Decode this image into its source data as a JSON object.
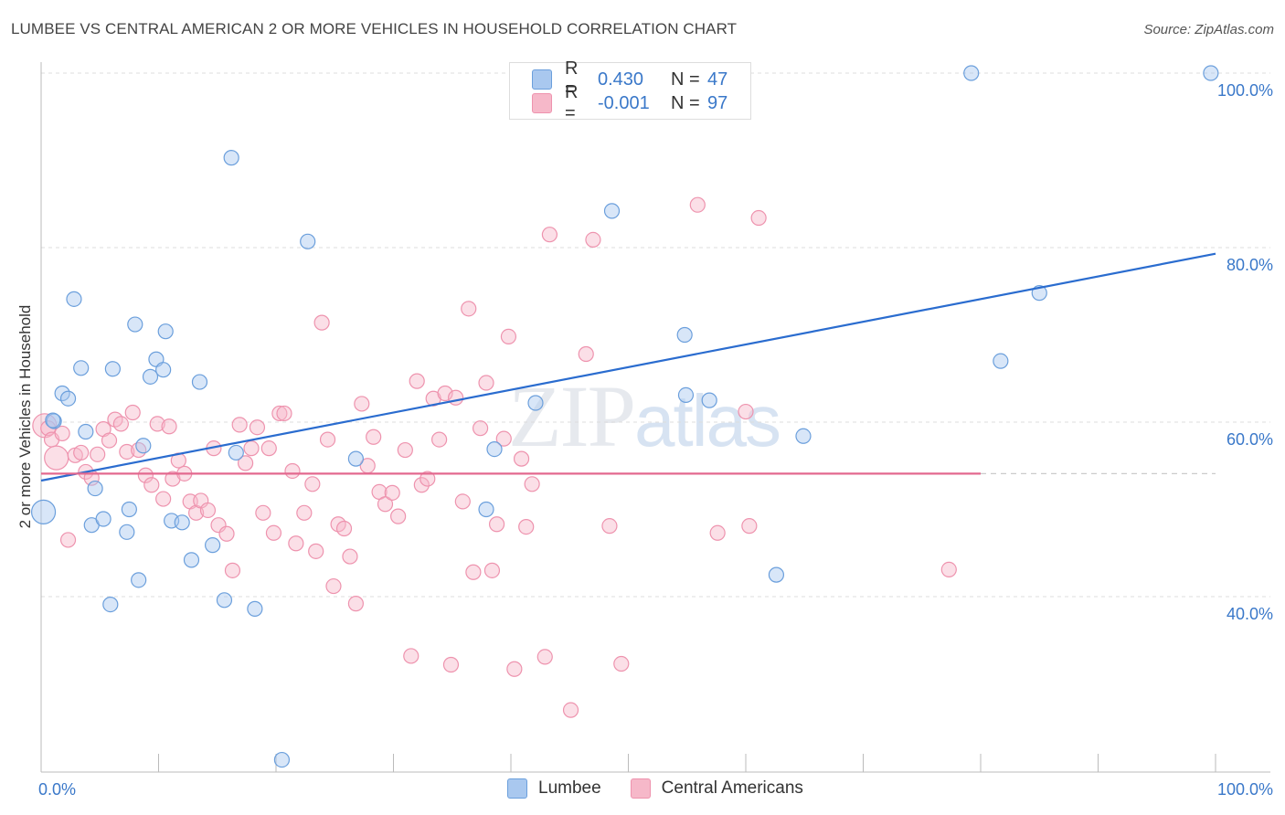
{
  "header": {
    "title": "LUMBEE VS CENTRAL AMERICAN 2 OR MORE VEHICLES IN HOUSEHOLD CORRELATION CHART",
    "source": "Source: ZipAtlas.com"
  },
  "watermark": {
    "zip": "ZIP",
    "atlas": "atlas"
  },
  "legend": {
    "rows": [
      {
        "r_label": "R =",
        "r_value": "0.430",
        "n_label": "N =",
        "n_value": "47",
        "color": "#a9c8ef"
      },
      {
        "r_label": "R =",
        "r_value": "-0.001",
        "n_label": "N =",
        "n_value": "97",
        "color": "#f6b8c9"
      }
    ]
  },
  "bottom_legend": [
    {
      "label": "Lumbee",
      "color": "#a9c8ef"
    },
    {
      "label": "Central Americans",
      "color": "#f6b8c9"
    }
  ],
  "chart_data": {
    "type": "scatter",
    "ylabel": "2 or more Vehicles in Household",
    "x_tick_labels": [
      "0.0%",
      "100.0%"
    ],
    "y_tick_labels": [
      "40.0%",
      "60.0%",
      "80.0%",
      "100.0%"
    ],
    "y_ticks": [
      40,
      60,
      80,
      100
    ],
    "xlim": [
      0,
      100
    ],
    "ylim": [
      20,
      102
    ],
    "grid": true,
    "series": [
      {
        "name": "Lumbee",
        "color": "#6b9fdc",
        "fill": "#a9c8ef",
        "trend": {
          "x": [
            0,
            100
          ],
          "y": [
            53.3,
            79.3
          ],
          "color": "#2a6ccf"
        },
        "points": [
          [
            0.2,
            49.7,
            2
          ],
          [
            1.1,
            60.1,
            1
          ],
          [
            1.8,
            63.3,
            1
          ],
          [
            2.3,
            62.7,
            1
          ],
          [
            2.8,
            74.1,
            1
          ],
          [
            3.4,
            66.2,
            1
          ],
          [
            3.8,
            58.9,
            1
          ],
          [
            4.3,
            48.2,
            1
          ],
          [
            4.6,
            52.4,
            1
          ],
          [
            5.3,
            48.9,
            1
          ],
          [
            5.9,
            39.1,
            1
          ],
          [
            6.1,
            66.1,
            1
          ],
          [
            7.3,
            47.4,
            1
          ],
          [
            7.5,
            50.0,
            1
          ],
          [
            8.0,
            71.2,
            1
          ],
          [
            8.3,
            41.9,
            1
          ],
          [
            8.7,
            57.3,
            1
          ],
          [
            9.3,
            65.2,
            1
          ],
          [
            9.8,
            67.2,
            1
          ],
          [
            10.4,
            66.0,
            1
          ],
          [
            10.6,
            70.4,
            1
          ],
          [
            11.1,
            48.7,
            1
          ],
          [
            12.0,
            48.5,
            1
          ],
          [
            12.8,
            44.2,
            1
          ],
          [
            13.5,
            64.6,
            1
          ],
          [
            14.6,
            45.9,
            1
          ],
          [
            15.6,
            39.6,
            1
          ],
          [
            16.2,
            90.3,
            1
          ],
          [
            16.6,
            56.5,
            1
          ],
          [
            18.2,
            38.6,
            1
          ],
          [
            20.5,
            21.3,
            1
          ],
          [
            22.7,
            80.7,
            1
          ],
          [
            26.8,
            55.8,
            1
          ],
          [
            37.9,
            50.0,
            1
          ],
          [
            38.6,
            56.9,
            1
          ],
          [
            42.1,
            62.2,
            1
          ],
          [
            48.6,
            84.2,
            1
          ],
          [
            54.8,
            70.0,
            1
          ],
          [
            54.9,
            63.1,
            1
          ],
          [
            56.9,
            62.5,
            1
          ],
          [
            62.6,
            42.5,
            1
          ],
          [
            64.9,
            58.4,
            1
          ],
          [
            79.2,
            100.0,
            1
          ],
          [
            81.7,
            67.0,
            1
          ],
          [
            85.0,
            74.8,
            1
          ],
          [
            99.6,
            100.0,
            1
          ],
          [
            1.0,
            60.2,
            1
          ]
        ]
      },
      {
        "name": "Central Americans",
        "color": "#ee93ae",
        "fill": "#f6b8c9",
        "trend": {
          "x": [
            0,
            80
          ],
          "y": [
            54.1,
            54.1
          ],
          "color": "#e3698f"
        },
        "points": [
          [
            0.3,
            59.6,
            2
          ],
          [
            0.6,
            59.3,
            1
          ],
          [
            0.9,
            58.0,
            1
          ],
          [
            1.3,
            55.9,
            2
          ],
          [
            1.8,
            58.7,
            1
          ],
          [
            2.3,
            46.5,
            1
          ],
          [
            2.9,
            56.2,
            1
          ],
          [
            3.4,
            56.5,
            1
          ],
          [
            3.8,
            54.3,
            1
          ],
          [
            4.3,
            53.6,
            1
          ],
          [
            4.8,
            56.3,
            1
          ],
          [
            5.3,
            59.2,
            1
          ],
          [
            5.8,
            57.9,
            1
          ],
          [
            6.3,
            60.3,
            1
          ],
          [
            6.8,
            59.8,
            1
          ],
          [
            7.3,
            56.6,
            1
          ],
          [
            7.8,
            61.1,
            1
          ],
          [
            8.3,
            56.8,
            1
          ],
          [
            8.9,
            53.9,
            1
          ],
          [
            9.4,
            52.8,
            1
          ],
          [
            9.9,
            59.8,
            1
          ],
          [
            10.4,
            51.2,
            1
          ],
          [
            10.9,
            59.5,
            1
          ],
          [
            11.2,
            53.5,
            1
          ],
          [
            11.7,
            55.6,
            1
          ],
          [
            12.2,
            54.1,
            1
          ],
          [
            12.7,
            50.9,
            1
          ],
          [
            13.2,
            49.6,
            1
          ],
          [
            13.6,
            51.0,
            1
          ],
          [
            14.2,
            49.9,
            1
          ],
          [
            14.7,
            57.0,
            1
          ],
          [
            15.1,
            48.2,
            1
          ],
          [
            15.8,
            47.2,
            1
          ],
          [
            16.3,
            43.0,
            1
          ],
          [
            16.9,
            59.7,
            1
          ],
          [
            17.4,
            55.3,
            1
          ],
          [
            17.9,
            57.0,
            1
          ],
          [
            18.4,
            59.4,
            1
          ],
          [
            18.9,
            49.6,
            1
          ],
          [
            19.4,
            57.0,
            1
          ],
          [
            19.8,
            47.3,
            1
          ],
          [
            20.3,
            61.0,
            1
          ],
          [
            20.7,
            61.0,
            1
          ],
          [
            21.4,
            54.4,
            1
          ],
          [
            21.7,
            46.1,
            1
          ],
          [
            22.4,
            49.6,
            1
          ],
          [
            23.1,
            52.9,
            1
          ],
          [
            23.4,
            45.2,
            1
          ],
          [
            23.9,
            71.4,
            1
          ],
          [
            24.4,
            58.0,
            1
          ],
          [
            24.9,
            41.2,
            1
          ],
          [
            25.3,
            48.3,
            1
          ],
          [
            25.8,
            47.8,
            1
          ],
          [
            26.3,
            44.6,
            1
          ],
          [
            26.8,
            39.2,
            1
          ],
          [
            27.3,
            62.1,
            1
          ],
          [
            27.8,
            55.0,
            1
          ],
          [
            28.3,
            58.3,
            1
          ],
          [
            28.8,
            52.0,
            1
          ],
          [
            29.3,
            50.6,
            1
          ],
          [
            29.9,
            51.9,
            1
          ],
          [
            30.4,
            49.2,
            1
          ],
          [
            31.0,
            56.8,
            1
          ],
          [
            31.5,
            33.2,
            1
          ],
          [
            32.0,
            64.7,
            1
          ],
          [
            32.4,
            52.8,
            1
          ],
          [
            32.9,
            53.5,
            1
          ],
          [
            33.4,
            62.7,
            1
          ],
          [
            33.9,
            58.0,
            1
          ],
          [
            34.4,
            63.3,
            1
          ],
          [
            34.9,
            32.2,
            1
          ],
          [
            35.3,
            62.8,
            1
          ],
          [
            35.9,
            50.9,
            1
          ],
          [
            36.4,
            73.0,
            1
          ],
          [
            36.8,
            42.8,
            1
          ],
          [
            37.4,
            59.3,
            1
          ],
          [
            37.9,
            64.5,
            1
          ],
          [
            38.4,
            43.0,
            1
          ],
          [
            38.8,
            48.3,
            1
          ],
          [
            39.4,
            58.1,
            1
          ],
          [
            39.8,
            69.8,
            1
          ],
          [
            40.3,
            31.7,
            1
          ],
          [
            40.9,
            55.8,
            1
          ],
          [
            41.3,
            48.0,
            1
          ],
          [
            41.8,
            52.9,
            1
          ],
          [
            42.9,
            33.1,
            1
          ],
          [
            43.3,
            81.5,
            1
          ],
          [
            45.1,
            27.0,
            1
          ],
          [
            46.4,
            67.8,
            1
          ],
          [
            47.0,
            80.9,
            1
          ],
          [
            48.4,
            48.1,
            1
          ],
          [
            49.4,
            32.3,
            1
          ],
          [
            55.9,
            84.9,
            1
          ],
          [
            57.6,
            47.3,
            1
          ],
          [
            60.0,
            61.2,
            1
          ],
          [
            60.3,
            48.1,
            1
          ],
          [
            61.1,
            83.4,
            1
          ],
          [
            77.3,
            43.1,
            1
          ]
        ]
      }
    ]
  }
}
